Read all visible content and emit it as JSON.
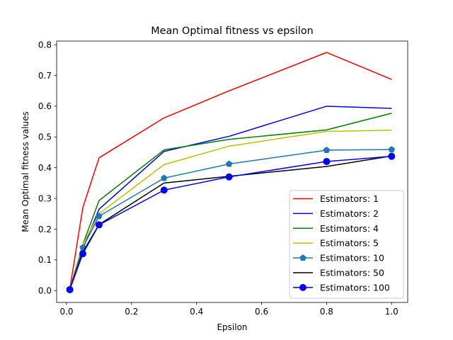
{
  "chart_data": {
    "type": "line",
    "title": "Mean Optimal fitness vs epsilon",
    "xlabel": "Epsilon",
    "ylabel": "Mean Optimal fitness values",
    "xlim": [
      -0.0305,
      1.0495
    ],
    "ylim": [
      -0.0386,
      0.8119
    ],
    "xticks": [
      0.0,
      0.2,
      0.4,
      0.6,
      0.8,
      1.0
    ],
    "xtick_labels": [
      "0.0",
      "0.2",
      "0.4",
      "0.6",
      "0.8",
      "1.0"
    ],
    "yticks": [
      0.0,
      0.1,
      0.2,
      0.3,
      0.4,
      0.5,
      0.6,
      0.7,
      0.8
    ],
    "ytick_labels": [
      "0.0",
      "0.1",
      "0.2",
      "0.3",
      "0.4",
      "0.5",
      "0.6",
      "0.7",
      "0.8"
    ],
    "grid": false,
    "legend_position": "lower-right",
    "x": [
      0.01,
      0.05,
      0.1,
      0.3,
      0.5,
      0.8,
      1.0
    ],
    "series": [
      {
        "name": "Estimators: 1",
        "color": "#ff0000",
        "marker": "none",
        "values": [
          0.005,
          0.27,
          0.432,
          0.562,
          0.65,
          0.775,
          0.687
        ]
      },
      {
        "name": "Estimators: 2",
        "color": "#0000ff",
        "marker": "none",
        "values": [
          0.005,
          0.135,
          0.265,
          0.453,
          0.502,
          0.6,
          0.593
        ]
      },
      {
        "name": "Estimators: 4",
        "color": "#008000",
        "marker": "none",
        "values": [
          0.005,
          0.15,
          0.293,
          0.458,
          0.492,
          0.523,
          0.577
        ]
      },
      {
        "name": "Estimators: 5",
        "color": "#bfbf00",
        "marker": "none",
        "values": [
          0.005,
          0.15,
          0.25,
          0.41,
          0.47,
          0.518,
          0.522
        ]
      },
      {
        "name": "Estimators: 10",
        "color": "#1f77b4",
        "marker": "pentagon",
        "values": [
          0.005,
          0.14,
          0.242,
          0.366,
          0.412,
          0.457,
          0.459
        ]
      },
      {
        "name": "Estimators: 50",
        "color": "#000000",
        "marker": "none",
        "values": [
          0.005,
          0.125,
          0.215,
          0.35,
          0.372,
          0.404,
          0.438
        ]
      },
      {
        "name": "Estimators: 100",
        "color": "#0000ff",
        "marker": "circle",
        "values": [
          0.003,
          0.12,
          0.214,
          0.327,
          0.37,
          0.42,
          0.437
        ]
      }
    ]
  }
}
